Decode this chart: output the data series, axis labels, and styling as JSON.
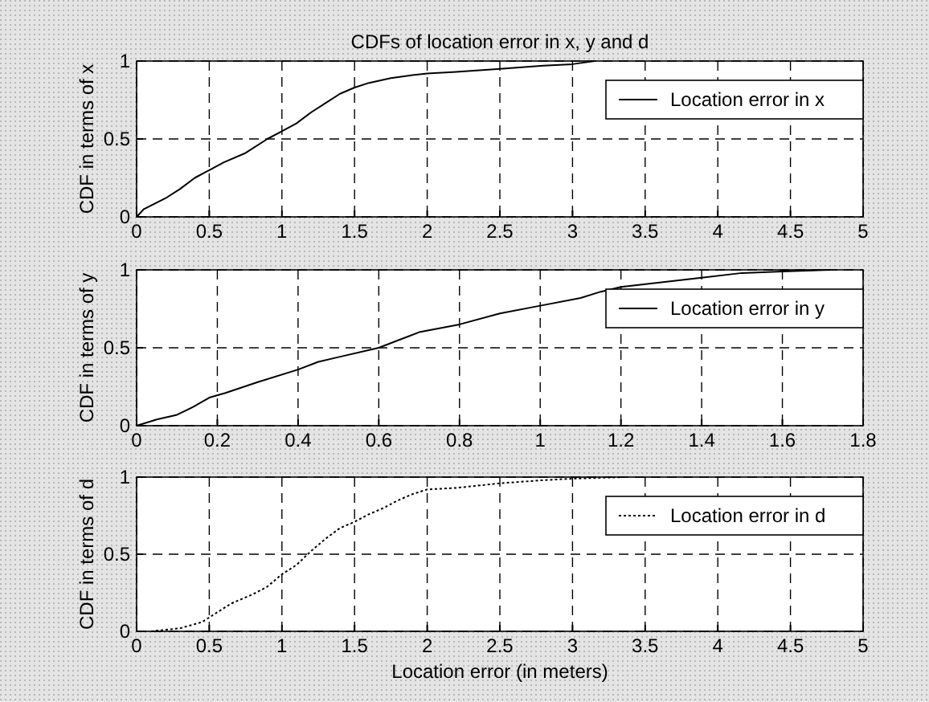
{
  "chart_data": [
    {
      "type": "line",
      "title": "CDFs of location error in x, y and d",
      "ylabel": "CDF in terms of x",
      "xlim": [
        0,
        5
      ],
      "xticks": [
        0,
        0.5,
        1,
        1.5,
        2,
        2.5,
        3,
        3.5,
        4,
        4.5,
        5
      ],
      "ylim": [
        0,
        1
      ],
      "yticks": [
        0,
        0.5,
        1
      ],
      "grid": true,
      "legend": "top right",
      "line_style": "solid",
      "series": [
        {
          "name": "Location error in x",
          "color": "#000000",
          "x": [
            0,
            0.05,
            0.2,
            0.3,
            0.4,
            0.5,
            0.6,
            0.75,
            0.9,
            1.0,
            1.1,
            1.2,
            1.3,
            1.4,
            1.5,
            1.6,
            1.75,
            1.9,
            2.0,
            2.2,
            2.5,
            2.8,
            3.0,
            3.15
          ],
          "values": [
            0,
            0.05,
            0.12,
            0.18,
            0.25,
            0.3,
            0.35,
            0.41,
            0.5,
            0.55,
            0.6,
            0.67,
            0.73,
            0.79,
            0.83,
            0.86,
            0.89,
            0.91,
            0.92,
            0.93,
            0.95,
            0.97,
            0.98,
            1.0
          ]
        }
      ]
    },
    {
      "type": "line",
      "ylabel": "CDF in terms of y",
      "xlim": [
        0,
        1.8
      ],
      "xticks": [
        0,
        0.2,
        0.4,
        0.6,
        0.8,
        1,
        1.2,
        1.4,
        1.6,
        1.8
      ],
      "ylim": [
        0,
        1
      ],
      "yticks": [
        0,
        0.5,
        1
      ],
      "grid": true,
      "legend": "top right",
      "line_style": "solid",
      "series": [
        {
          "name": "Location error in y",
          "color": "#000000",
          "x": [
            0,
            0.05,
            0.1,
            0.14,
            0.18,
            0.22,
            0.3,
            0.4,
            0.45,
            0.5,
            0.6,
            0.65,
            0.7,
            0.8,
            0.9,
            1.0,
            1.1,
            1.15,
            1.2,
            1.3,
            1.4,
            1.5,
            1.6,
            1.72
          ],
          "values": [
            0,
            0.04,
            0.07,
            0.12,
            0.18,
            0.21,
            0.28,
            0.36,
            0.41,
            0.44,
            0.5,
            0.55,
            0.6,
            0.65,
            0.72,
            0.77,
            0.82,
            0.86,
            0.89,
            0.92,
            0.95,
            0.98,
            0.99,
            1.0
          ]
        }
      ]
    },
    {
      "type": "line",
      "xlabel": "Location error (in meters)",
      "ylabel": "CDF in terms of d",
      "xlim": [
        0,
        5
      ],
      "xticks": [
        0,
        0.5,
        1,
        1.5,
        2,
        2.5,
        3,
        3.5,
        4,
        4.5,
        5
      ],
      "ylim": [
        0,
        1
      ],
      "yticks": [
        0,
        0.5,
        1
      ],
      "grid": true,
      "legend": "top right",
      "line_style": "dotted",
      "series": [
        {
          "name": "Location error in d",
          "color": "#000000",
          "x": [
            0.1,
            0.3,
            0.45,
            0.55,
            0.65,
            0.8,
            0.9,
            1.0,
            1.1,
            1.2,
            1.3,
            1.4,
            1.5,
            1.6,
            1.7,
            1.8,
            1.9,
            2.0,
            2.2,
            2.5,
            2.8,
            3.0,
            3.35
          ],
          "values": [
            0,
            0.02,
            0.06,
            0.12,
            0.18,
            0.24,
            0.29,
            0.37,
            0.43,
            0.52,
            0.6,
            0.67,
            0.71,
            0.76,
            0.8,
            0.85,
            0.89,
            0.92,
            0.93,
            0.96,
            0.98,
            0.99,
            1.0
          ]
        }
      ]
    }
  ]
}
